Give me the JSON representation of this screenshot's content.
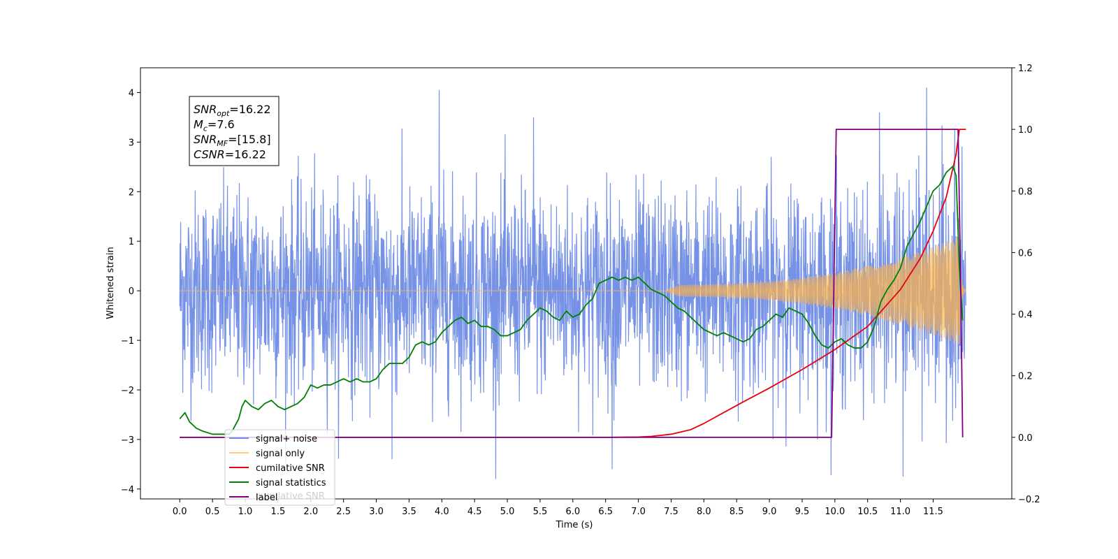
{
  "chart_data": {
    "type": "line",
    "xlabel": "Time (s)",
    "ylabel_left": "Whitened strain",
    "xlim": [
      -0.6,
      12.7
    ],
    "ylim_left": [
      -4.2,
      4.5
    ],
    "ylim_right": [
      -0.2,
      1.2
    ],
    "x_ticks": [
      0.0,
      0.5,
      1.0,
      1.5,
      2.0,
      2.5,
      3.0,
      3.5,
      4.0,
      4.5,
      5.0,
      5.5,
      6.0,
      6.5,
      7.0,
      7.5,
      8.0,
      8.5,
      9.0,
      9.5,
      10.0,
      10.5,
      11.0,
      11.5
    ],
    "x_tick_labels": [
      "0.0",
      "0.5",
      "1.0",
      "1.5",
      "2.0",
      "2.5",
      "3.0",
      "3.5",
      "4.0",
      "4.5",
      "5.0",
      "5.5",
      "6.0",
      "6.5",
      "7.0",
      "7.5",
      "8.0",
      "8.5",
      "9.0",
      "9.5",
      "10.0",
      "10.5",
      "11.0",
      "11.5"
    ],
    "y_left_ticks": [
      -4,
      -3,
      -2,
      -1,
      0,
      1,
      2,
      3,
      4
    ],
    "y_left_tick_labels": [
      "−4",
      "−3",
      "−2",
      "−1",
      "0",
      "1",
      "2",
      "3",
      "4"
    ],
    "y_right_ticks": [
      -0.2,
      0.0,
      0.2,
      0.4,
      0.6,
      0.8,
      1.0,
      1.2
    ],
    "y_right_tick_labels": [
      "−0.2",
      "0.0",
      "0.2",
      "0.4",
      "0.6",
      "0.8",
      "1.0",
      "1.2"
    ],
    "legend": {
      "position": "lower-left",
      "entries": [
        "signal+ noise",
        "signal only",
        "cumilative SNR",
        "signal statistics",
        "label"
      ],
      "overlapped_text": "cumilative SNR"
    },
    "annotation": {
      "lines": [
        {
          "base": "SNR",
          "sub": "opt",
          "rest": "=16.22"
        },
        {
          "base": "M",
          "sub": "c",
          "rest": "=7.6"
        },
        {
          "base": "SNR",
          "sub": "MF",
          "rest": "=[15.8]"
        },
        {
          "base": "CSNR",
          "sub": "",
          "rest": "=16.22"
        }
      ]
    },
    "series": [
      {
        "name": "signal+ noise",
        "axis": "left",
        "color": "#6f8ce6",
        "generated": true,
        "x_range": [
          0.0,
          12.0
        ],
        "amplitude_std": 1.0,
        "peak_values": [
          4.1,
          4.05,
          3.6,
          3.5,
          -3.75,
          -3.6,
          -3.4
        ]
      },
      {
        "name": "signal only",
        "axis": "left",
        "color": "#ffb347",
        "generated": true,
        "chirp_start": 7.4,
        "merger": 11.9,
        "max_amplitude": 1.1
      },
      {
        "name": "cumilative SNR",
        "axis": "right",
        "color": "#e8000b",
        "x": [
          0.0,
          6.5,
          7.0,
          7.2,
          7.5,
          7.8,
          8.0,
          8.3,
          8.6,
          9.0,
          9.5,
          10.0,
          10.5,
          11.0,
          11.3,
          11.5,
          11.7,
          11.85,
          11.9,
          12.0
        ],
        "y": [
          0.0,
          0.0,
          0.001,
          0.003,
          0.01,
          0.025,
          0.045,
          0.08,
          0.115,
          0.16,
          0.22,
          0.285,
          0.36,
          0.48,
          0.58,
          0.67,
          0.78,
          0.92,
          1.0,
          1.0
        ]
      },
      {
        "name": "signal statistics",
        "axis": "right",
        "color": "#008000",
        "x": [
          0.0,
          0.08,
          0.15,
          0.25,
          0.35,
          0.5,
          0.65,
          0.75,
          0.8,
          0.85,
          0.9,
          0.95,
          1.0,
          1.05,
          1.1,
          1.2,
          1.3,
          1.4,
          1.5,
          1.6,
          1.7,
          1.8,
          1.9,
          2.0,
          2.1,
          2.2,
          2.3,
          2.4,
          2.5,
          2.6,
          2.7,
          2.8,
          2.9,
          3.0,
          3.1,
          3.2,
          3.3,
          3.4,
          3.5,
          3.6,
          3.7,
          3.8,
          3.9,
          4.0,
          4.1,
          4.2,
          4.3,
          4.4,
          4.5,
          4.6,
          4.7,
          4.8,
          4.9,
          5.0,
          5.1,
          5.2,
          5.3,
          5.4,
          5.5,
          5.6,
          5.7,
          5.8,
          5.9,
          6.0,
          6.1,
          6.2,
          6.3,
          6.4,
          6.5,
          6.6,
          6.7,
          6.8,
          6.9,
          7.0,
          7.1,
          7.2,
          7.3,
          7.4,
          7.5,
          7.6,
          7.7,
          7.8,
          7.9,
          8.0,
          8.1,
          8.2,
          8.3,
          8.4,
          8.5,
          8.6,
          8.7,
          8.8,
          8.9,
          9.0,
          9.1,
          9.2,
          9.3,
          9.4,
          9.5,
          9.6,
          9.7,
          9.8,
          9.9,
          10.0,
          10.1,
          10.2,
          10.3,
          10.4,
          10.5,
          10.6,
          10.7,
          10.8,
          10.9,
          11.0,
          11.1,
          11.2,
          11.3,
          11.4,
          11.5,
          11.6,
          11.7,
          11.8,
          11.85,
          11.9,
          11.95
        ],
        "y": [
          0.06,
          0.08,
          0.05,
          0.03,
          0.02,
          0.01,
          0.01,
          0.01,
          0.02,
          0.04,
          0.06,
          0.1,
          0.12,
          0.11,
          0.1,
          0.09,
          0.11,
          0.12,
          0.1,
          0.09,
          0.1,
          0.11,
          0.13,
          0.17,
          0.16,
          0.17,
          0.17,
          0.18,
          0.19,
          0.18,
          0.19,
          0.18,
          0.18,
          0.19,
          0.22,
          0.24,
          0.24,
          0.24,
          0.26,
          0.3,
          0.31,
          0.3,
          0.31,
          0.34,
          0.36,
          0.38,
          0.39,
          0.37,
          0.38,
          0.36,
          0.36,
          0.35,
          0.33,
          0.33,
          0.34,
          0.35,
          0.38,
          0.4,
          0.42,
          0.41,
          0.39,
          0.38,
          0.41,
          0.39,
          0.4,
          0.43,
          0.45,
          0.5,
          0.51,
          0.52,
          0.51,
          0.52,
          0.51,
          0.52,
          0.5,
          0.48,
          0.47,
          0.46,
          0.44,
          0.42,
          0.41,
          0.39,
          0.37,
          0.35,
          0.34,
          0.33,
          0.34,
          0.33,
          0.32,
          0.31,
          0.32,
          0.35,
          0.36,
          0.38,
          0.4,
          0.39,
          0.42,
          0.41,
          0.4,
          0.37,
          0.33,
          0.3,
          0.29,
          0.31,
          0.32,
          0.3,
          0.29,
          0.29,
          0.31,
          0.36,
          0.44,
          0.48,
          0.51,
          0.55,
          0.62,
          0.66,
          0.7,
          0.75,
          0.8,
          0.82,
          0.86,
          0.88,
          0.85,
          0.55,
          0.38
        ],
        "x_end": 11.96
      },
      {
        "name": "label",
        "axis": "right",
        "color": "#800080",
        "x": [
          0.0,
          9.95,
          10.02,
          11.88,
          11.92,
          11.95
        ],
        "y": [
          0.0,
          0.0,
          1.0,
          1.0,
          0.5,
          0.0
        ]
      }
    ]
  }
}
